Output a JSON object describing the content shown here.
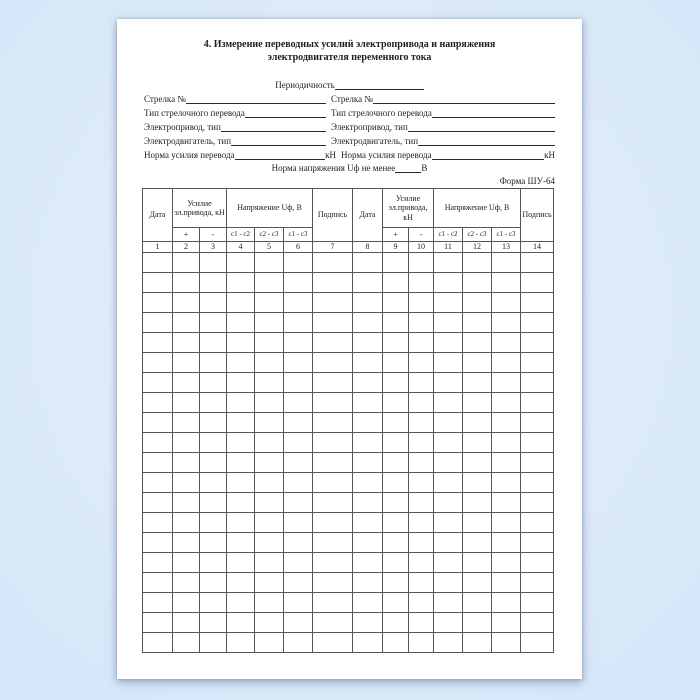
{
  "document": {
    "title_line1": "4. Измерение переводных усилий электропривода и напряжения",
    "title_line2": "электродвигателя переменного тока",
    "form_code": "Форма ШУ-64"
  },
  "form_fields": {
    "periodicity_label": "Периодичность",
    "switch_number_label": "Стрелка №",
    "switch_type_label": "Тип стрелочного перевода",
    "drive_type_label": "Электропривод, тип",
    "motor_type_label": "Электродвигатель, тип",
    "force_norm_label": "Норма усилия перевода",
    "force_unit": "кН",
    "voltage_norm_label": "Норма напряжения Uф не менее",
    "voltage_unit": "В"
  },
  "table": {
    "headers": {
      "date": "Дата",
      "force_group": "Усилие эл.привода, кН",
      "voltage_group": "Напряжение Uф, В",
      "signature": "Подпись",
      "force_plus": "+",
      "force_minus": "-",
      "v_c1c2": "с1 - с2",
      "v_c2c3": "с2 - с3",
      "v_c1c3": "с1 - с3"
    },
    "column_numbers": [
      "1",
      "2",
      "3",
      "4",
      "5",
      "6",
      "7",
      "8",
      "9",
      "10",
      "11",
      "12",
      "13",
      "14"
    ],
    "empty_row_count": 20
  }
}
